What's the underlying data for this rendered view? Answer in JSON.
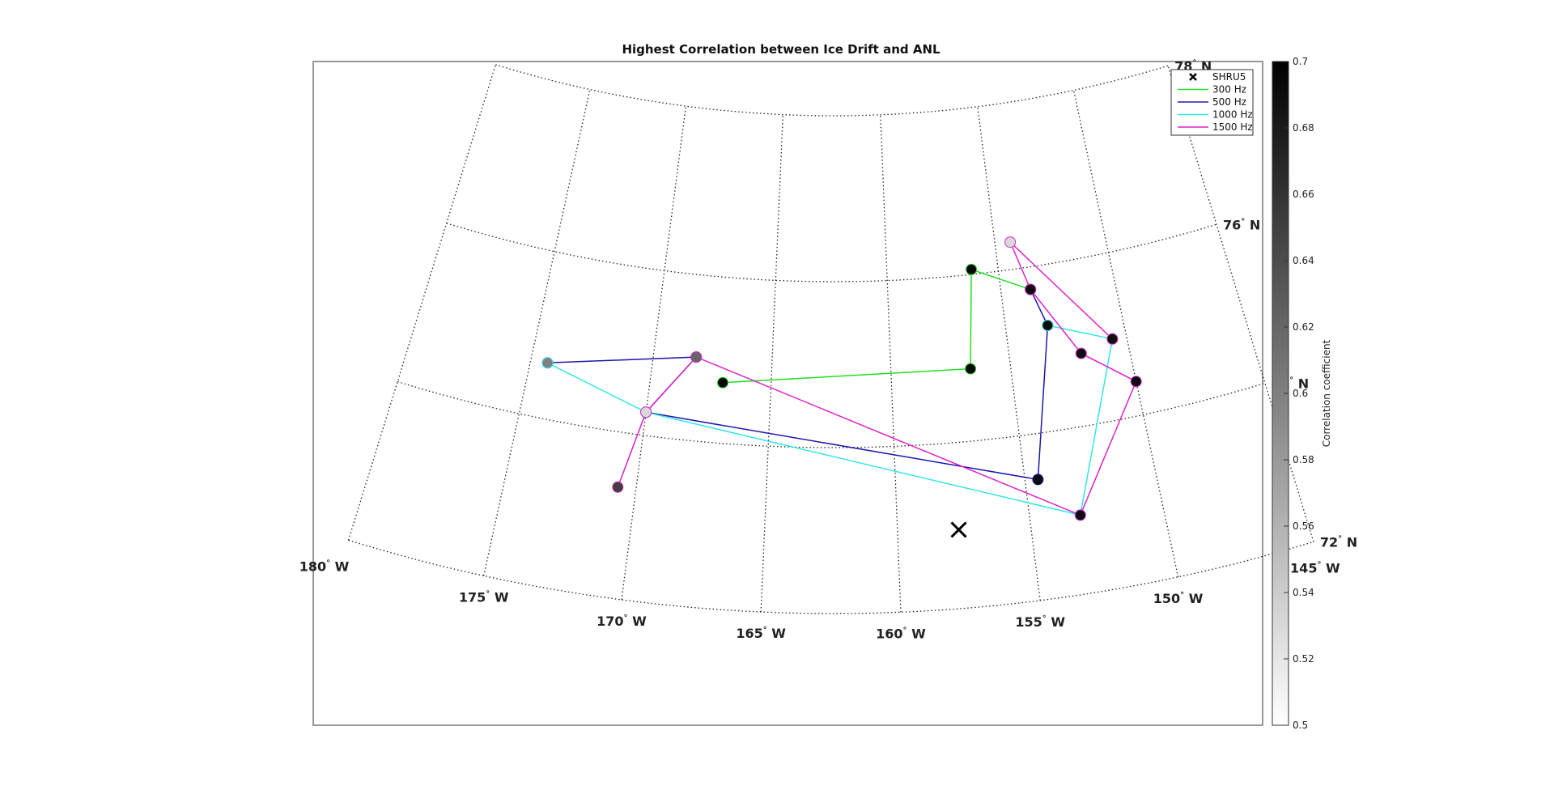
{
  "chart_data": {
    "type": "scatter",
    "title": "Highest Correlation between Ice Drift and ANL",
    "map": {
      "lat_labels": [
        {
          "text": "72",
          "sup": "°",
          "suffix": " N",
          "lat": 72
        },
        {
          "text": "74",
          "sup": "°",
          "suffix": " N",
          "lat": 74
        },
        {
          "text": "76",
          "sup": "°",
          "suffix": " N",
          "lat": 76
        },
        {
          "text": "78",
          "sup": "°",
          "suffix": " N",
          "lat": 78
        }
      ],
      "lon_labels": [
        {
          "text": "180",
          "sup": "°",
          "suffix": " W",
          "lon": -180
        },
        {
          "text": "175",
          "sup": "°",
          "suffix": " W",
          "lon": -175
        },
        {
          "text": "170",
          "sup": "°",
          "suffix": " W",
          "lon": -170
        },
        {
          "text": "165",
          "sup": "°",
          "suffix": " W",
          "lon": -165
        },
        {
          "text": "160",
          "sup": "°",
          "suffix": " W",
          "lon": -160
        },
        {
          "text": "155",
          "sup": "°",
          "suffix": " W",
          "lon": -155
        },
        {
          "text": "150",
          "sup": "°",
          "suffix": " W",
          "lon": -150
        },
        {
          "text": "145",
          "sup": "°",
          "suffix": " W",
          "lon": -145
        }
      ],
      "lat_range": [
        72,
        78
      ],
      "lon_range": [
        -180,
        -145
      ],
      "grid": true
    },
    "legend": {
      "position": "top-right",
      "entries": [
        {
          "label": "SHRU5",
          "kind": "marker",
          "color": "#000000"
        },
        {
          "label": "300 Hz",
          "kind": "line",
          "color": "#22dd22"
        },
        {
          "label": "500 Hz",
          "kind": "line",
          "color": "#1a1aaa"
        },
        {
          "label": "1000 Hz",
          "kind": "line",
          "color": "#33e6e6"
        },
        {
          "label": "1500 Hz",
          "kind": "line",
          "color": "#dd22cc"
        }
      ]
    },
    "shru5": {
      "lon": -157.7,
      "lat": 72.95
    },
    "series": [
      {
        "name": "300 Hz",
        "color": "#22dd22",
        "points": [
          {
            "lon": -167.0,
            "lat": 74.73,
            "corr": 0.695
          },
          {
            "lon": -156.67,
            "lat": 74.87,
            "corr": 0.695
          },
          {
            "lon": -156.2,
            "lat": 76.06,
            "corr": 0.695
          },
          {
            "lon": -153.7,
            "lat": 75.73,
            "corr": 0.695
          }
        ]
      },
      {
        "name": "500 Hz",
        "color": "#1a1aaa",
        "points": [
          {
            "lon": -174.3,
            "lat": 74.67,
            "corr": 0.6
          },
          {
            "lon": -168.2,
            "lat": 75.01,
            "corr": 0.62
          },
          {
            "lon": -170.0,
            "lat": 74.28,
            "corr": 0.53
          },
          {
            "lon": -154.5,
            "lat": 73.45,
            "corr": 0.69
          },
          {
            "lon": -153.2,
            "lat": 75.27,
            "corr": 0.69
          },
          {
            "lon": -153.7,
            "lat": 75.73,
            "corr": 0.69
          }
        ]
      },
      {
        "name": "1000 Hz",
        "color": "#33e6e6",
        "points": [
          {
            "lon": -174.3,
            "lat": 74.67,
            "corr": 0.6
          },
          {
            "lon": -170.0,
            "lat": 74.28,
            "corr": 0.53
          },
          {
            "lon": -153.1,
            "lat": 72.95,
            "corr": 0.69
          },
          {
            "lon": -150.6,
            "lat": 74.97,
            "corr": 0.69
          },
          {
            "lon": -153.2,
            "lat": 75.27,
            "corr": 0.69
          }
        ]
      },
      {
        "name": "1500 Hz",
        "color": "#dd22cc",
        "points": [
          {
            "lon": -170.7,
            "lat": 73.34,
            "corr": 0.65
          },
          {
            "lon": -170.0,
            "lat": 74.28,
            "corr": 0.53
          },
          {
            "lon": -168.2,
            "lat": 75.01,
            "corr": 0.62
          },
          {
            "lon": -153.1,
            "lat": 72.95,
            "corr": 0.69
          },
          {
            "lon": -150.0,
            "lat": 74.41,
            "corr": 0.69
          },
          {
            "lon": -152.0,
            "lat": 74.87,
            "corr": 0.69
          },
          {
            "lon": -153.7,
            "lat": 75.73,
            "corr": 0.69
          },
          {
            "lon": -154.3,
            "lat": 76.33,
            "corr": 0.53
          },
          {
            "lon": -150.6,
            "lat": 74.97,
            "corr": 0.69
          }
        ]
      }
    ],
    "colorbar": {
      "label": "Correlation coefficient",
      "range": [
        0.5,
        0.7
      ],
      "ticks": [
        "0.5",
        "0.52",
        "0.54",
        "0.56",
        "0.58",
        "0.6",
        "0.62",
        "0.64",
        "0.66",
        "0.68",
        "0.7"
      ],
      "colormap": "gray-reversed"
    }
  }
}
